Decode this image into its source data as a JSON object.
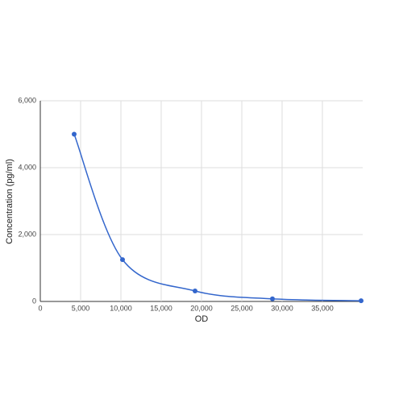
{
  "chart_data": {
    "type": "scatter",
    "x_label": "OD",
    "y_label": "Concentration (pg/ml)",
    "series": [
      {
        "color": "#3366cc",
        "x": [
          4200,
          10200,
          19200,
          28800,
          39800
        ],
        "values": [
          5000,
          1250,
          313,
          78,
          20
        ]
      }
    ],
    "xlim": [
      0,
      40000
    ],
    "xticks": [
      0,
      {
        "value": 5000,
        "label": "5,000"
      },
      {
        "value": 10000,
        "label": "10,000"
      },
      {
        "value": 15000,
        "label": "15,000"
      },
      {
        "value": 20000,
        "label": "20,000"
      },
      {
        "value": 25000,
        "label": "25,000"
      },
      {
        "value": 30000,
        "label": "30,000"
      },
      {
        "value": 35000,
        "label": "35,000"
      }
    ],
    "ylim": [
      0,
      6000
    ],
    "yticks": [
      0,
      {
        "value": 2000,
        "label": "2,000"
      },
      {
        "value": 4000,
        "label": "4,000"
      },
      {
        "value": 6000,
        "label": "6,000"
      }
    ],
    "grid": true,
    "smooth": true
  }
}
